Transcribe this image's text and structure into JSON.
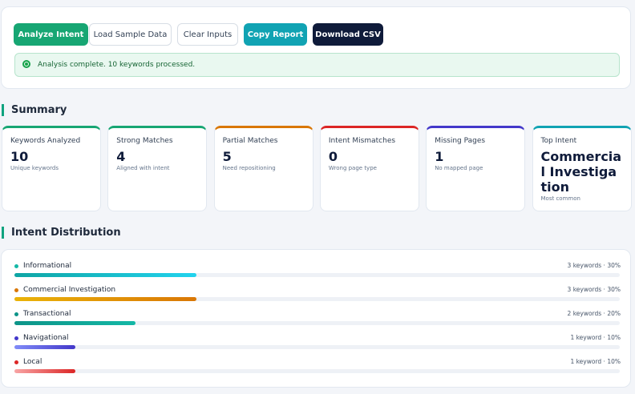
{
  "toolbar": {
    "buttons": [
      "Analyze Intent",
      "Load Sample Data",
      "Clear Inputs",
      "Copy Report",
      "Download CSV"
    ]
  },
  "status": "Analysis complete. 10 keywords processed.",
  "summary": {
    "title": "Summary",
    "cards": [
      {
        "label": "Keywords Analyzed",
        "value": 10,
        "note": "Unique keywords"
      },
      {
        "label": "Strong Matches",
        "value": 4,
        "note": "Aligned with intent"
      },
      {
        "label": "Partial Matches",
        "value": 5,
        "note": "Need repositioning"
      },
      {
        "label": "Intent Mismatches",
        "value": 0,
        "note": "Wrong page type"
      },
      {
        "label": "Missing Pages",
        "value": 1,
        "note": "No mapped page"
      },
      {
        "label": "Top Intent",
        "value": "Commercial Investigation",
        "note": "Most common"
      }
    ]
  },
  "distribution": {
    "title": "Intent Distribution",
    "rows": [
      {
        "name": "Informational",
        "label": "3 keywords · 30%",
        "percent": 30
      },
      {
        "name": "Commercial Investigation",
        "label": "3 keywords · 30%",
        "percent": 30
      },
      {
        "name": "Transactional",
        "label": "2 keywords · 20%",
        "percent": 20
      },
      {
        "name": "Navigational",
        "label": "1 keyword · 10%",
        "percent": 10
      },
      {
        "name": "Local",
        "label": "1 keyword · 10%",
        "percent": 10
      }
    ]
  }
}
